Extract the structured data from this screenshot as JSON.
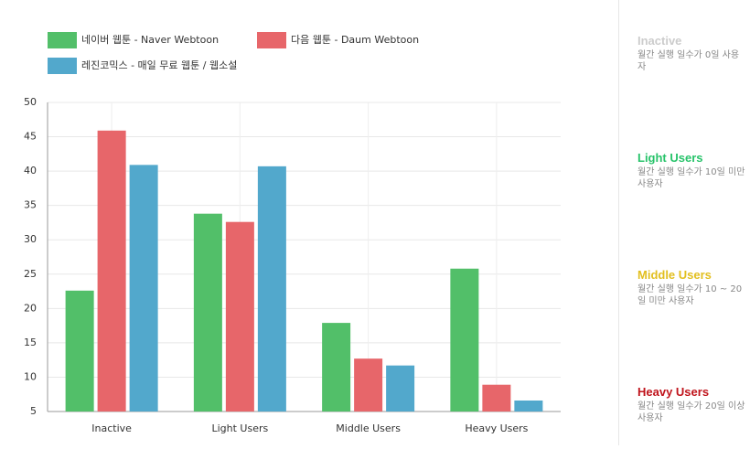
{
  "chart_data": {
    "type": "bar",
    "categories": [
      "Inactive",
      "Light Users",
      "Middle Users",
      "Heavy Users"
    ],
    "series": [
      {
        "name": "네이버 웹툰 - Naver Webtoon",
        "color": "#52bf69",
        "values": [
          22.6,
          33.8,
          17.9,
          25.8
        ]
      },
      {
        "name": "다음 웹툰 - Daum Webtoon",
        "color": "#e7666a",
        "values": [
          45.9,
          32.6,
          12.7,
          8.9
        ]
      },
      {
        "name": "레진코믹스 - 매일 무료 웹툰 / 웹소설",
        "color": "#52a8cc",
        "values": [
          40.9,
          40.7,
          11.7,
          6.6
        ]
      }
    ],
    "ylim": [
      5,
      50
    ],
    "yticks": [
      5,
      10,
      15,
      20,
      25,
      30,
      35,
      40,
      45,
      50
    ],
    "grid": true
  },
  "sidebar": [
    {
      "title": "Inactive",
      "color": "#cccccc",
      "desc": "월간 실행 일수가 0일 사용자"
    },
    {
      "title": "Light Users",
      "color": "#27c36a",
      "desc": "월간 실행 일수가 10일 미만 사용자"
    },
    {
      "title": "Middle Users",
      "color": "#e2bf1f",
      "desc": "월간 실행 일수가 10 ~ 20일 미만 사용자"
    },
    {
      "title": "Heavy Users",
      "color": "#c0141c",
      "desc": "월간 실행 일수가 20일 이상 사용자"
    }
  ]
}
